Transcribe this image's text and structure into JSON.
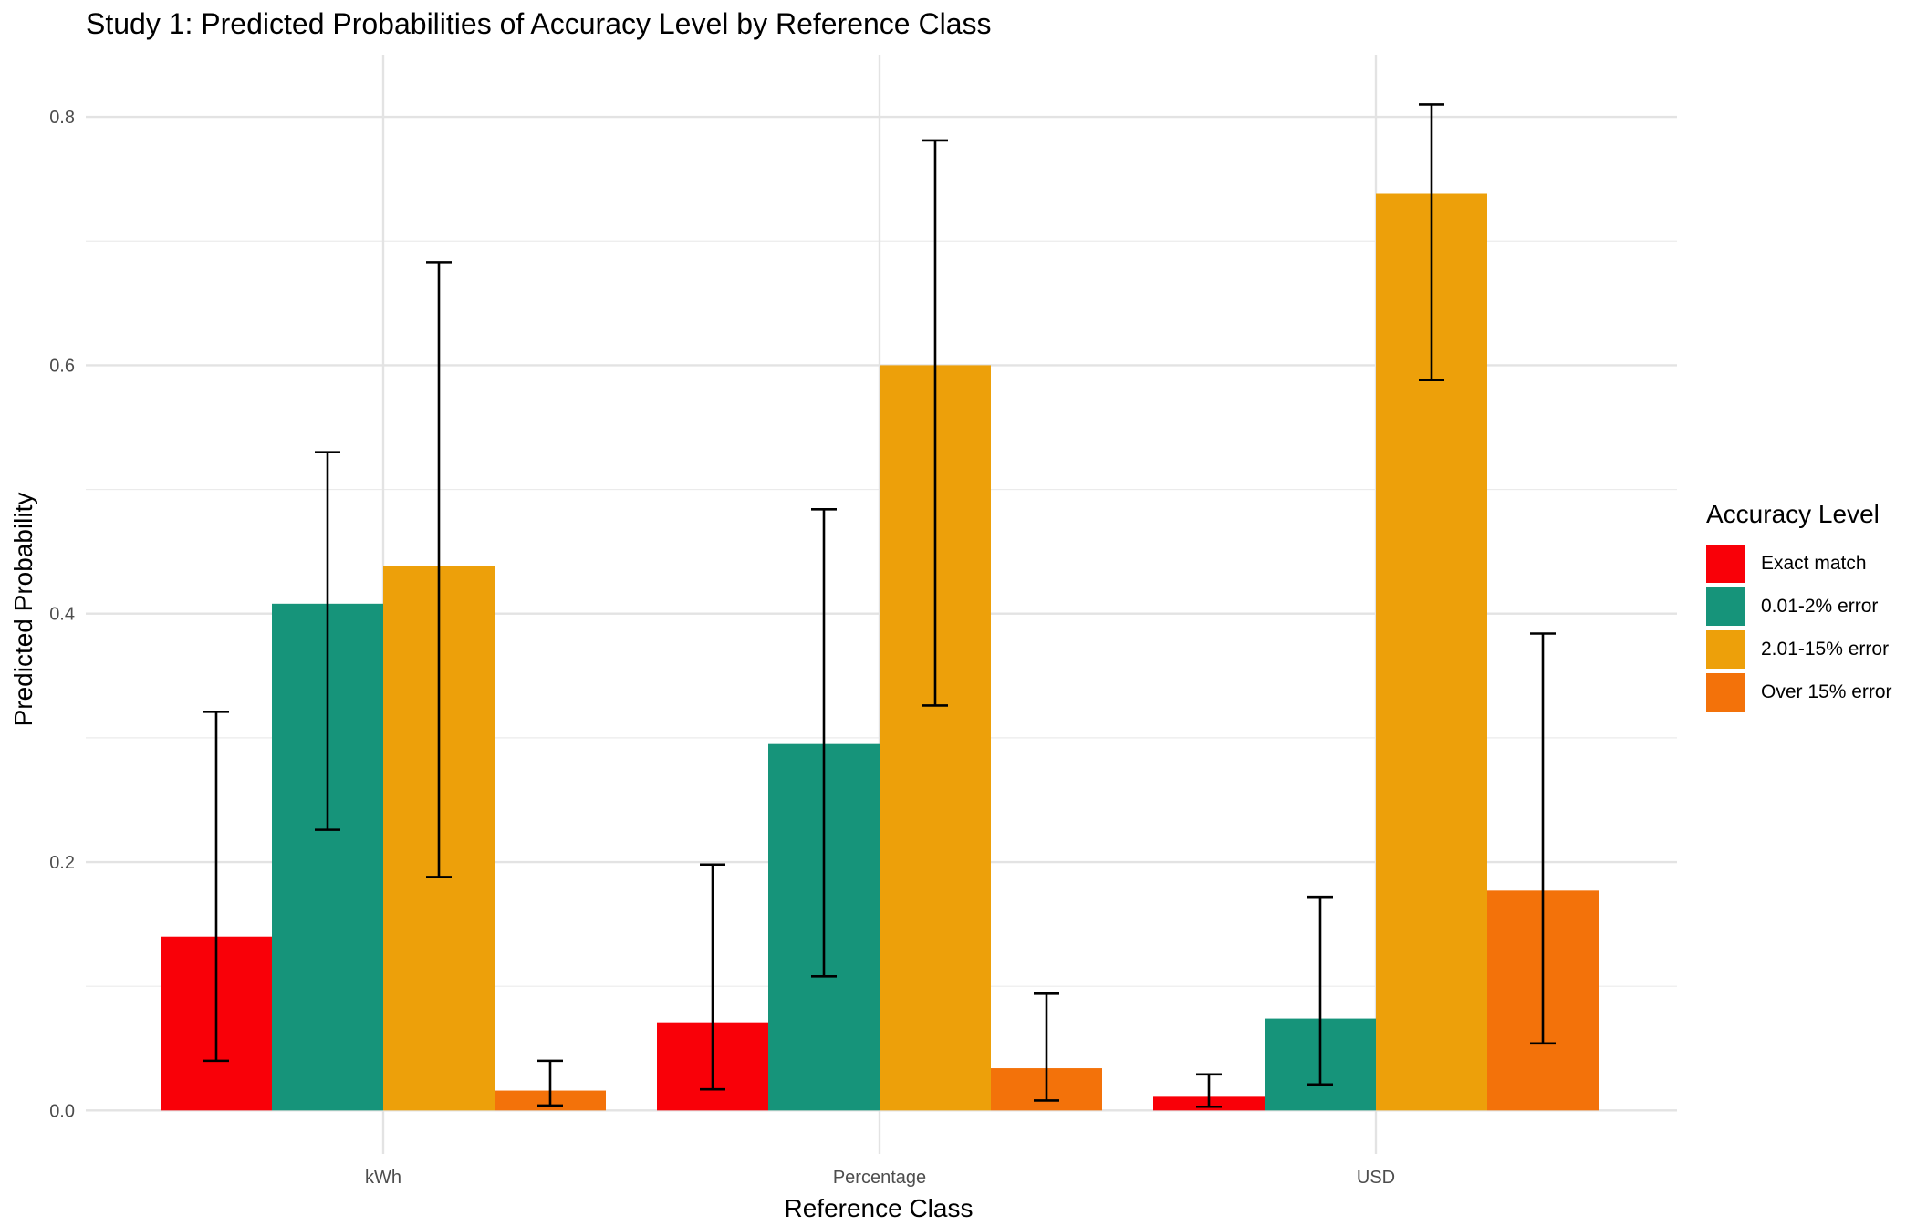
{
  "chart_data": {
    "type": "bar",
    "title": "Study 1: Predicted Probabilities of Accuracy Level by Reference Class",
    "xlabel": "Reference Class",
    "ylabel": "Predicted Probability",
    "categories": [
      "kWh",
      "Percentage",
      "USD"
    ],
    "ylim": [
      -0.035,
      0.85
    ],
    "yticks": [
      0.0,
      0.2,
      0.4,
      0.6,
      0.8
    ],
    "ytick_labels": [
      "0.0",
      "0.2",
      "0.4",
      "0.6",
      "0.8"
    ],
    "grid": true,
    "legend_title": "Accuracy Level",
    "legend_position": "right",
    "series": [
      {
        "name": "Exact match",
        "color": "#F90008",
        "values": [
          0.14,
          0.071,
          0.011
        ],
        "ci_low": [
          0.04,
          0.017,
          0.003
        ],
        "ci_high": [
          0.321,
          0.198,
          0.029
        ]
      },
      {
        "name": "0.01-2% error",
        "color": "#16947A",
        "values": [
          0.408,
          0.295,
          0.074
        ],
        "ci_low": [
          0.226,
          0.108,
          0.021
        ],
        "ci_high": [
          0.53,
          0.484,
          0.172
        ]
      },
      {
        "name": "2.01-15% error",
        "color": "#EDA00A",
        "values": [
          0.438,
          0.6,
          0.738
        ],
        "ci_low": [
          0.188,
          0.326,
          0.588
        ],
        "ci_high": [
          0.683,
          0.781,
          0.81
        ]
      },
      {
        "name": "Over 15% error",
        "color": "#F3720A",
        "values": [
          0.016,
          0.034,
          0.177
        ],
        "ci_low": [
          0.004,
          0.008,
          0.054
        ],
        "ci_high": [
          0.04,
          0.094,
          0.384
        ]
      }
    ]
  }
}
